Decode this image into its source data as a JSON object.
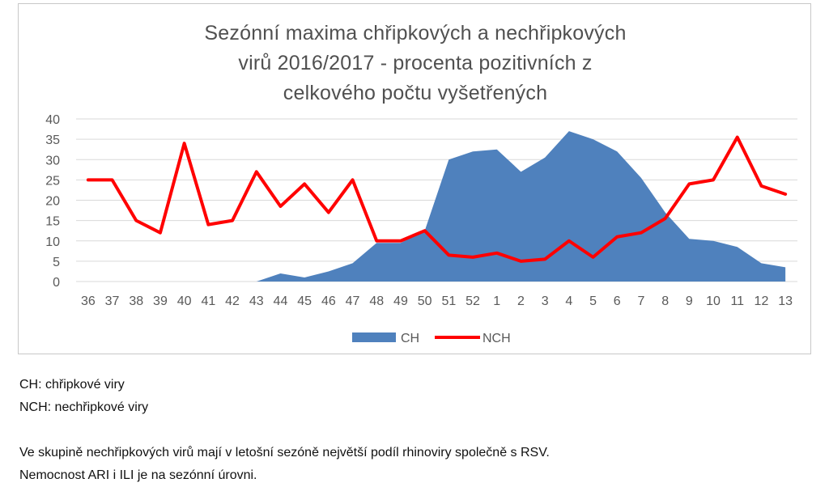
{
  "chart_data": {
    "type": "area",
    "title": "Sezónní maxima chřipkových a nechřipkových virů 2016/2017 - procenta pozitivních z celkového počtu vyšetřených",
    "title_lines": [
      "Sezónní maxima chřipkových a nechřipkových",
      "virů 2016/2017 - procenta pozitivních z",
      "celkového počtu vyšetřených"
    ],
    "xlabel": "",
    "ylabel": "",
    "categories": [
      "36",
      "37",
      "38",
      "39",
      "40",
      "41",
      "42",
      "43",
      "44",
      "45",
      "46",
      "47",
      "48",
      "49",
      "50",
      "51",
      "52",
      "1",
      "2",
      "3",
      "4",
      "5",
      "6",
      "7",
      "8",
      "9",
      "10",
      "11",
      "12",
      "13"
    ],
    "ylim": [
      0,
      40
    ],
    "yticks": [
      0,
      5,
      10,
      15,
      20,
      25,
      30,
      35,
      40
    ],
    "grid": true,
    "legend_position": "bottom",
    "series": [
      {
        "name": "CH",
        "type": "area",
        "color": "#4f81bd",
        "values": [
          0,
          0,
          0,
          0,
          0,
          0,
          0,
          0,
          2,
          1,
          2.5,
          4.5,
          9.5,
          9.5,
          12.5,
          30,
          32,
          32.5,
          27,
          30.5,
          37,
          35,
          32,
          25.5,
          17,
          10.5,
          10,
          8.5,
          4.5,
          3.5
        ]
      },
      {
        "name": "NCH",
        "type": "line",
        "color": "#ff0000",
        "values": [
          25,
          25,
          15,
          12,
          34,
          14,
          15,
          27,
          18.5,
          24,
          17,
          25,
          10,
          10,
          12.5,
          6.5,
          6,
          7,
          5,
          5.5,
          10,
          6,
          11,
          12,
          15.5,
          24,
          25,
          35.5,
          23.5,
          21.5
        ]
      }
    ]
  },
  "notes": {
    "line1": "CH: chřipkové viry",
    "line2": "NCH: nechřipkové viry",
    "line3": "Ve skupině nechřipkových virů mají v letošní sezóně největší podíl rhinoviry společně s RSV.",
    "line4": "Nemocnost ARI i ILI je na sezónní úrovni."
  }
}
